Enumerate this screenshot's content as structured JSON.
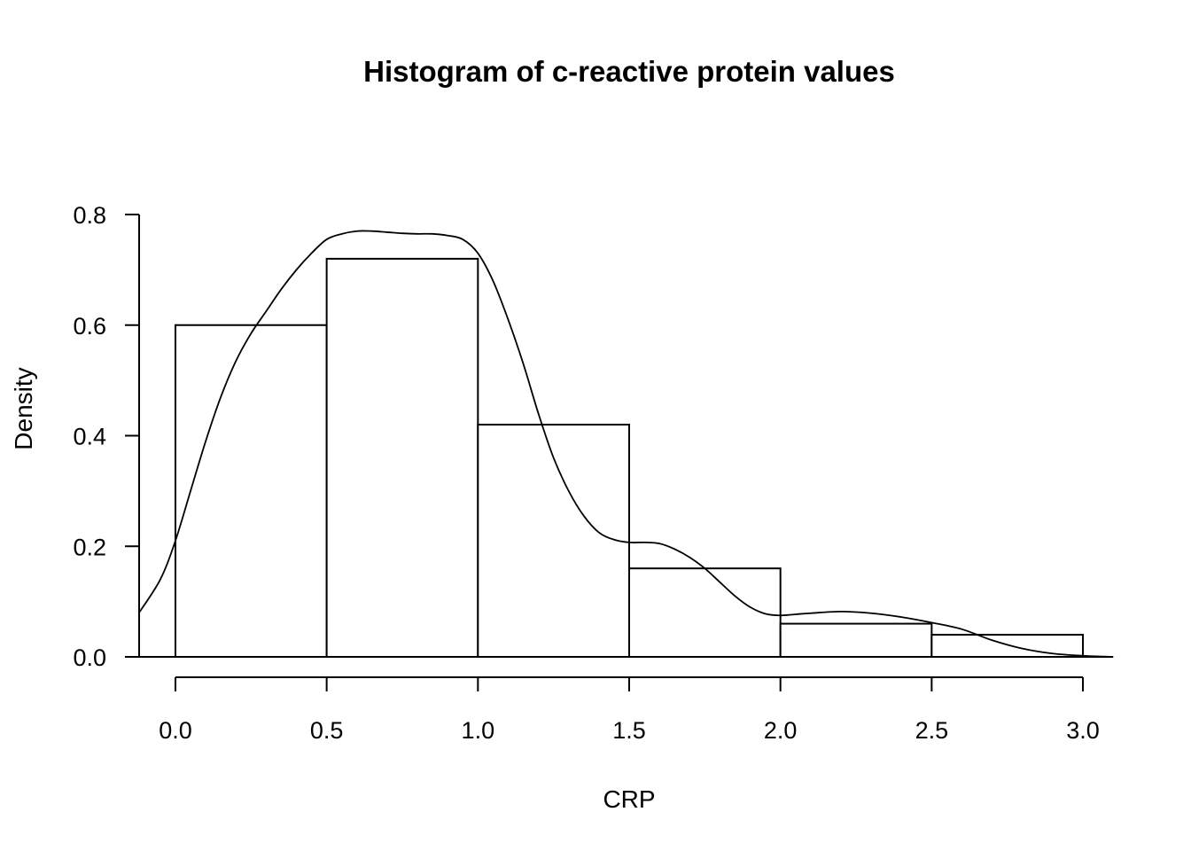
{
  "chart_data": {
    "type": "bar",
    "title": "Histogram of c-reactive protein values",
    "xlabel": "CRP",
    "ylabel": "Density",
    "xlim": [
      -0.12,
      3.12
    ],
    "ylim": [
      0,
      0.8
    ],
    "grid": false,
    "bins": [
      {
        "start": 0.0,
        "end": 0.5,
        "density": 0.6
      },
      {
        "start": 0.5,
        "end": 1.0,
        "density": 0.72
      },
      {
        "start": 1.0,
        "end": 1.5,
        "density": 0.42
      },
      {
        "start": 1.5,
        "end": 2.0,
        "density": 0.16
      },
      {
        "start": 2.0,
        "end": 2.5,
        "density": 0.06
      },
      {
        "start": 2.5,
        "end": 3.0,
        "density": 0.04
      }
    ],
    "x_ticks": [
      0.0,
      0.5,
      1.0,
      1.5,
      2.0,
      2.5,
      3.0
    ],
    "x_tick_labels": [
      "0.0",
      "0.5",
      "1.0",
      "1.5",
      "2.0",
      "2.5",
      "3.0"
    ],
    "y_ticks": [
      0.0,
      0.2,
      0.4,
      0.6,
      0.8
    ],
    "y_tick_labels": [
      "0.0",
      "0.2",
      "0.4",
      "0.6",
      "0.8"
    ],
    "density_curve": {
      "x": [
        -0.12,
        -0.05,
        0.0,
        0.05,
        0.1,
        0.15,
        0.2,
        0.25,
        0.3,
        0.35,
        0.4,
        0.45,
        0.5,
        0.55,
        0.6,
        0.65,
        0.7,
        0.75,
        0.8,
        0.85,
        0.9,
        0.95,
        1.0,
        1.05,
        1.1,
        1.15,
        1.2,
        1.25,
        1.3,
        1.35,
        1.4,
        1.45,
        1.5,
        1.55,
        1.6,
        1.65,
        1.7,
        1.75,
        1.8,
        1.85,
        1.9,
        1.95,
        2.0,
        2.05,
        2.1,
        2.2,
        2.3,
        2.4,
        2.5,
        2.6,
        2.7,
        2.8,
        2.9,
        3.0,
        3.1
      ],
      "y": [
        0.08,
        0.14,
        0.21,
        0.3,
        0.39,
        0.47,
        0.535,
        0.585,
        0.625,
        0.665,
        0.7,
        0.73,
        0.755,
        0.765,
        0.77,
        0.77,
        0.768,
        0.766,
        0.765,
        0.765,
        0.762,
        0.755,
        0.73,
        0.68,
        0.61,
        0.53,
        0.44,
        0.36,
        0.3,
        0.255,
        0.225,
        0.212,
        0.207,
        0.207,
        0.205,
        0.195,
        0.18,
        0.16,
        0.135,
        0.11,
        0.09,
        0.078,
        0.075,
        0.077,
        0.079,
        0.082,
        0.079,
        0.072,
        0.062,
        0.05,
        0.03,
        0.015,
        0.006,
        0.002,
        0.0
      ]
    }
  }
}
